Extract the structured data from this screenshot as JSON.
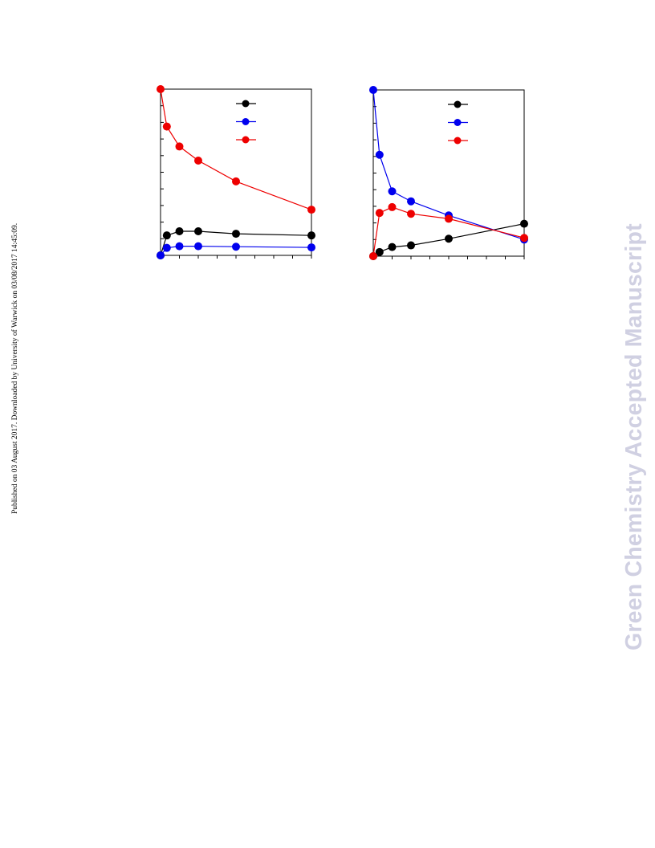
{
  "page": {
    "side_note": "Published on 03 August 2017. Downloaded by University of Warwick on 03/08/2017 14:45:09.",
    "watermark": "Green Chemistry Accepted Manuscript"
  },
  "colors": {
    "black": "#000000",
    "blue": "#0000ee",
    "red": "#ee0000",
    "watermark": "#d0d0e2"
  },
  "chart_data": [
    {
      "type": "line",
      "x": [
        0,
        0.5,
        1.5,
        3,
        6,
        12
      ],
      "xlim": [
        0,
        12
      ],
      "ylim": [
        0,
        100
      ],
      "grid": false,
      "legend_position": "top-right",
      "series": [
        {
          "color": "#000000",
          "values": [
            0,
            12,
            14.5,
            14.5,
            13,
            12
          ]
        },
        {
          "color": "#0000ee",
          "values": [
            0,
            4.5,
            5.5,
            5.5,
            5.2,
            4.8
          ]
        },
        {
          "color": "#ee0000",
          "values": [
            100,
            77.5,
            65.5,
            57,
            44.5,
            27.5
          ]
        }
      ]
    },
    {
      "type": "line",
      "x": [
        0,
        0.5,
        1.5,
        3,
        6,
        12
      ],
      "xlim": [
        0,
        12
      ],
      "ylim": [
        0,
        100
      ],
      "grid": false,
      "legend_position": "top-right",
      "series": [
        {
          "color": "#000000",
          "values": [
            0,
            2.5,
            5.5,
            6.5,
            10.5,
            19.5
          ]
        },
        {
          "color": "#0000ee",
          "values": [
            100,
            61,
            39,
            33,
            24.5,
            10
          ]
        },
        {
          "color": "#ee0000",
          "values": [
            0,
            26,
            29.5,
            25.5,
            22.5,
            11
          ]
        }
      ]
    }
  ]
}
